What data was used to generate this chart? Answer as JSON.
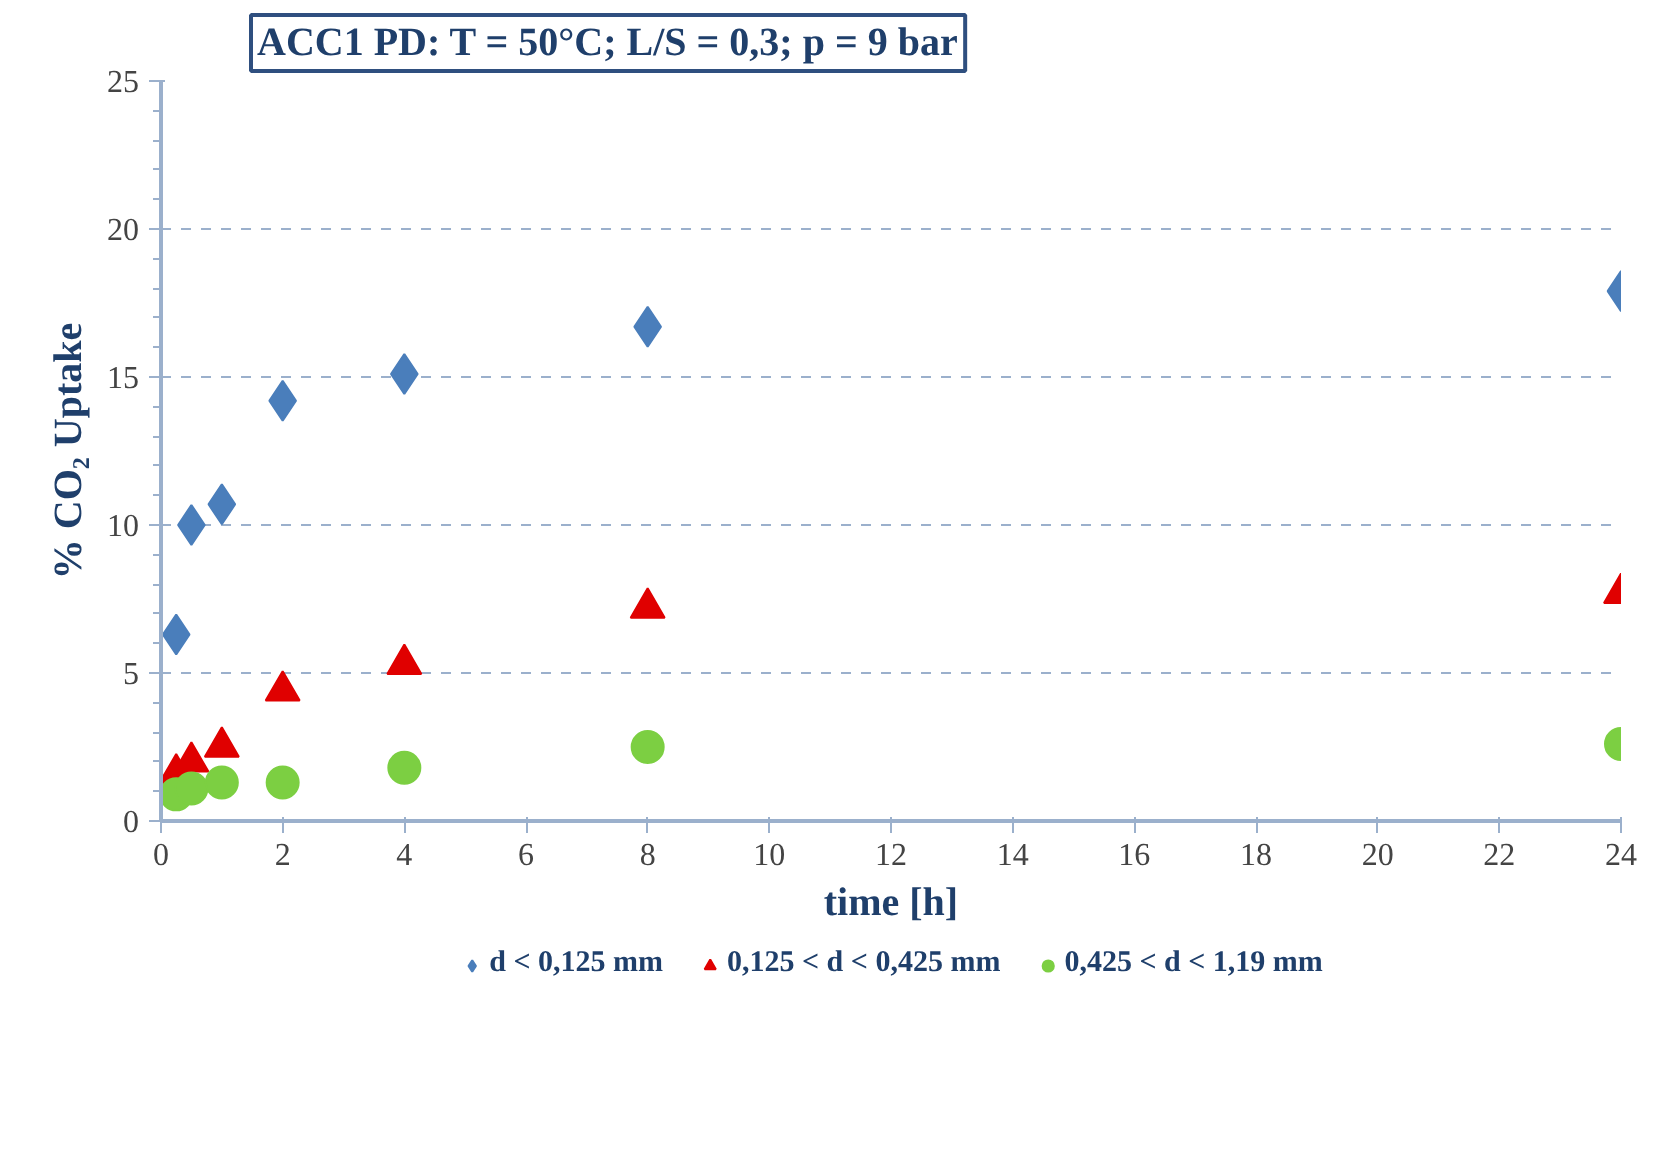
{
  "chart_data": {
    "type": "scatter",
    "title": "ACC1 PD: T = 50°C; L/S = 0,3; p = 9 bar",
    "xlabel": "time [h]",
    "ylabel": "% CO₂ Uptake",
    "x": [
      0.25,
      0.5,
      1,
      2,
      4,
      8,
      24
    ],
    "series": [
      {
        "name": "d < 0,125 mm",
        "color": "#4a7ebb",
        "marker": "diamond",
        "values": [
          6.3,
          10.0,
          10.7,
          14.2,
          15.1,
          16.7,
          17.9
        ]
      },
      {
        "name": "0,125 < d < 0,425 mm",
        "color": "#e00000",
        "marker": "triangle",
        "values": [
          1.6,
          2.0,
          2.5,
          4.4,
          5.3,
          7.2,
          7.7
        ]
      },
      {
        "name": "0,425 < d < 1,19 mm",
        "color": "#7ccf42",
        "marker": "circle",
        "values": [
          0.9,
          1.1,
          1.3,
          1.3,
          1.8,
          2.5,
          2.6
        ]
      }
    ],
    "xlim": [
      0,
      24
    ],
    "ylim": [
      0,
      25
    ],
    "xticks": [
      0,
      2,
      4,
      6,
      8,
      10,
      12,
      14,
      16,
      18,
      20,
      22,
      24
    ],
    "yticks": [
      0,
      5,
      10,
      15,
      20,
      25
    ],
    "grid": "y",
    "legend": "bottom"
  }
}
